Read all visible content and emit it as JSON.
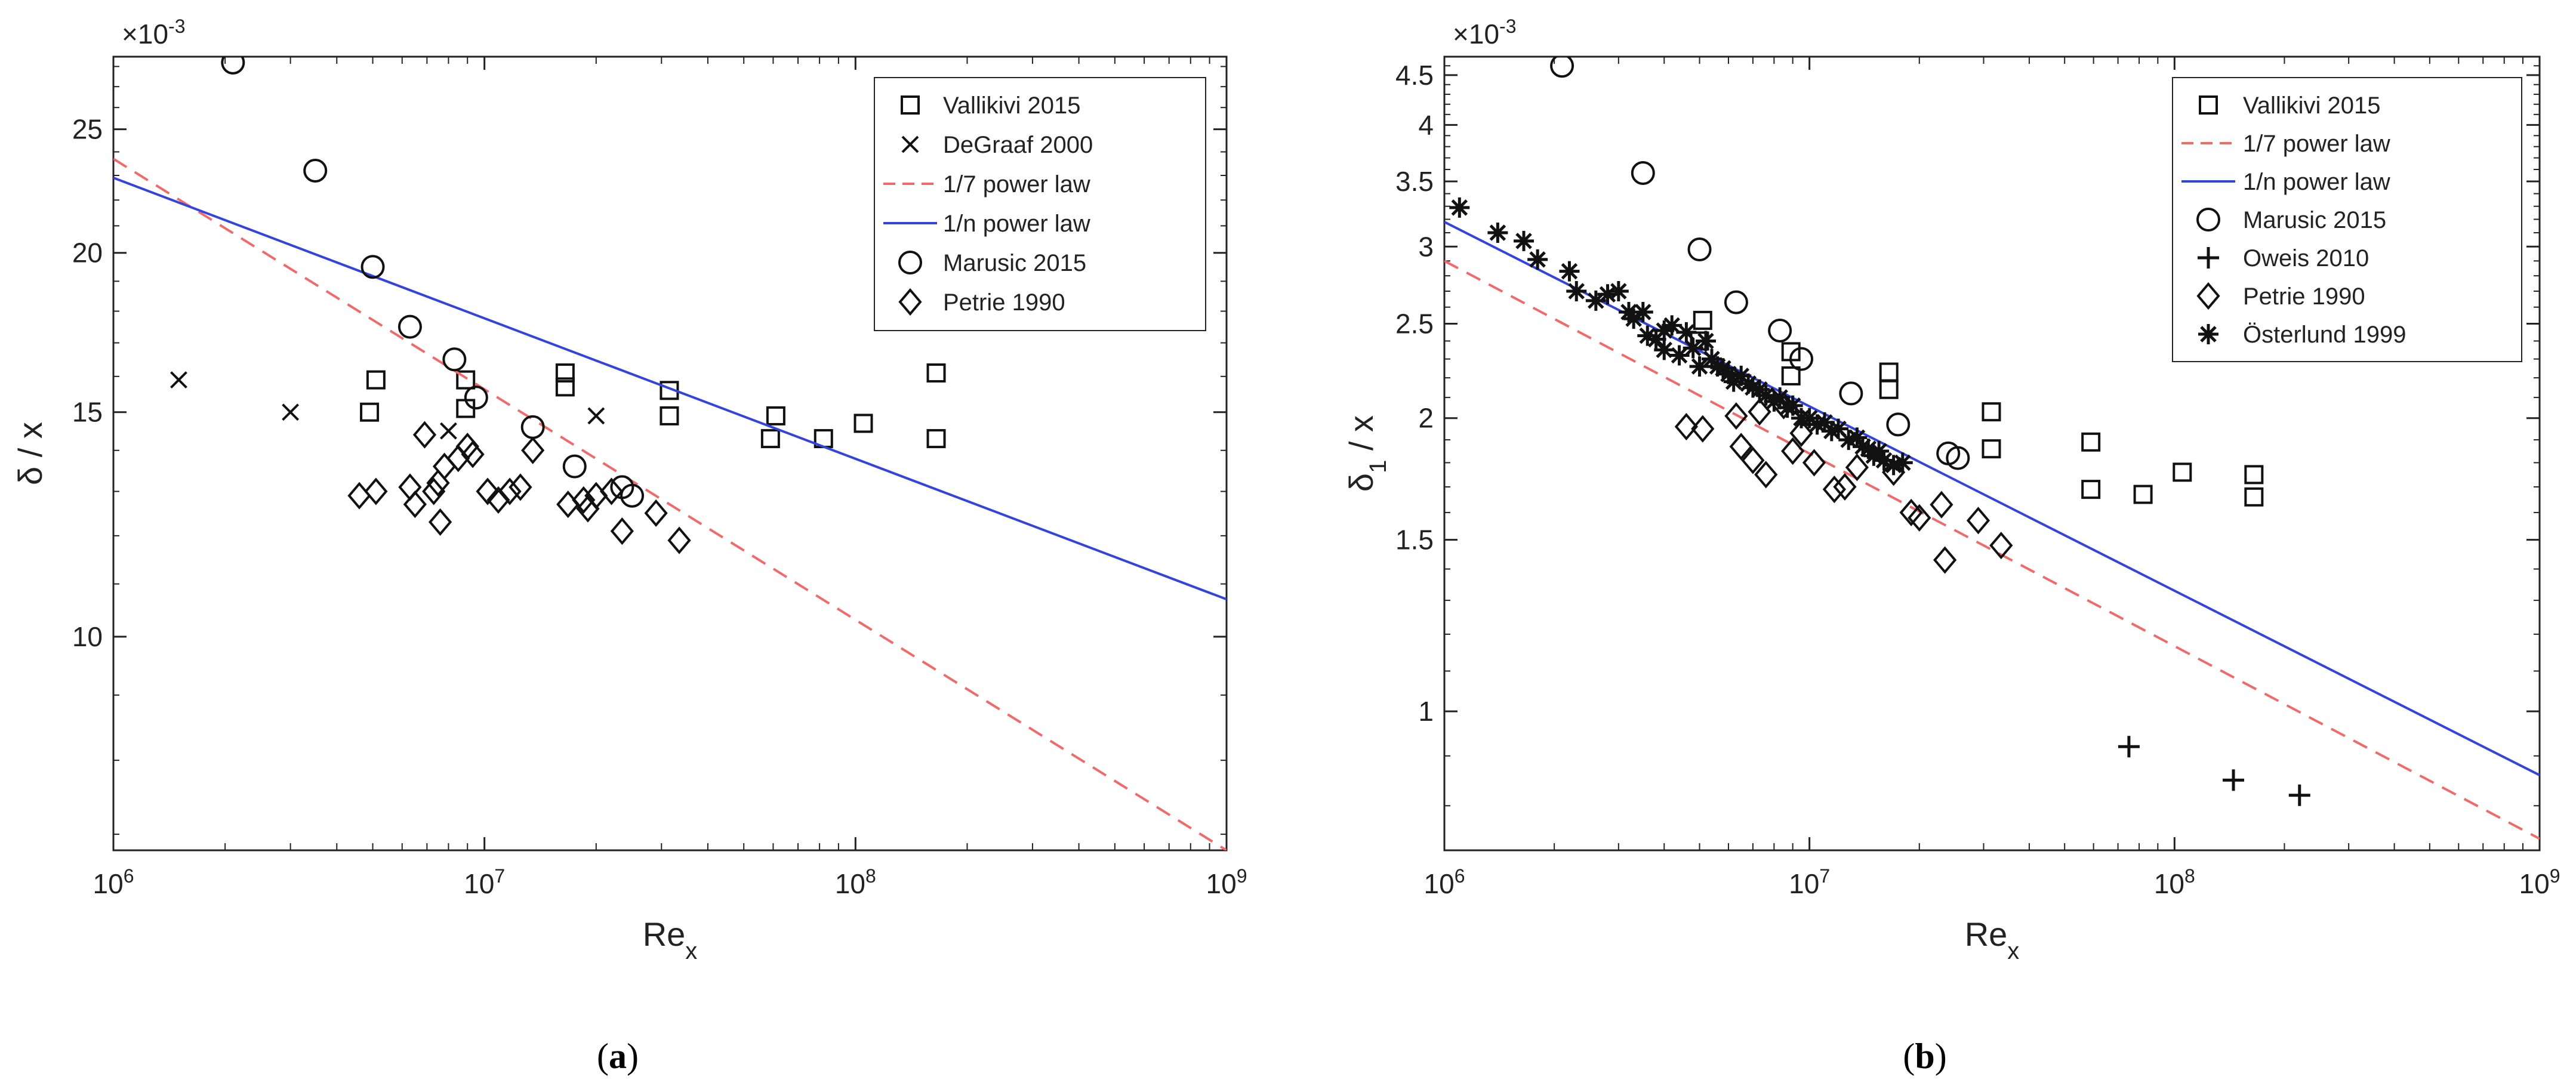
{
  "chart_data": [
    {
      "type": "scatter",
      "title": "",
      "caption": "(a)",
      "xlabel": "Re",
      "xlabel_sub": "x",
      "ylabel": "δ / x",
      "y_multiplier": "×10",
      "y_multiplier_exp": "-3",
      "xscale": "log",
      "yscale": "log",
      "xlim": [
        1000000,
        1000000000
      ],
      "ylim": [
        0.0068,
        0.0285
      ],
      "xticks": [
        1000000,
        10000000,
        100000000,
        1000000000
      ],
      "xtick_labels": [
        {
          "base": "10",
          "exp": "6"
        },
        {
          "base": "10",
          "exp": "7"
        },
        {
          "base": "10",
          "exp": "8"
        },
        {
          "base": "10",
          "exp": "9"
        }
      ],
      "yticks": [
        0.01,
        0.015,
        0.02,
        0.025
      ],
      "ytick_labels": [
        "10",
        "15",
        "20",
        "25"
      ],
      "legend_position": "top-right",
      "series": [
        {
          "name": "Vallikivi 2015",
          "kind": "marker",
          "marker": "square",
          "color": "#111111",
          "points": [
            [
              4900000,
              0.015
            ],
            [
              5100000,
              0.0159
            ],
            [
              8900000,
              0.0159
            ],
            [
              8900000,
              0.0151
            ],
            [
              16500000,
              0.0157
            ],
            [
              16500000,
              0.0161
            ],
            [
              31500000,
              0.0156
            ],
            [
              31500000,
              0.0149
            ],
            [
              59000000,
              0.0143
            ],
            [
              61000000,
              0.0149
            ],
            [
              82000000,
              0.0143
            ],
            [
              105000000,
              0.0147
            ],
            [
              165000000,
              0.0161
            ],
            [
              165000000,
              0.0143
            ]
          ]
        },
        {
          "name": "DeGraaf 2000",
          "kind": "marker",
          "marker": "x",
          "color": "#111111",
          "points": [
            [
              1500000,
              0.0159
            ],
            [
              3000000,
              0.015
            ],
            [
              8000000,
              0.0145
            ],
            [
              20000000,
              0.0149
            ]
          ]
        },
        {
          "name": "1/7 power law",
          "kind": "line",
          "dash": "dashed",
          "color": "#f06a6a",
          "points": [
            [
              1000000,
              0.0237
            ],
            [
              1000000000,
              0.0068
            ]
          ]
        },
        {
          "name": "1/n power law",
          "kind": "line",
          "dash": "solid",
          "color": "#3344dd",
          "points": [
            [
              1000000,
              0.0229
            ],
            [
              1000000000,
              0.0107
            ]
          ]
        },
        {
          "name": "Marusic 2015",
          "kind": "marker",
          "marker": "circle",
          "color": "#111111",
          "points": [
            [
              2100000,
              0.0282
            ],
            [
              3500000,
              0.0232
            ],
            [
              5000000,
              0.0195
            ],
            [
              6300000,
              0.0175
            ],
            [
              8300000,
              0.0165
            ],
            [
              9500000,
              0.0154
            ],
            [
              13500000,
              0.0146
            ],
            [
              17500000,
              0.0136
            ],
            [
              23500000,
              0.0131
            ],
            [
              25000000,
              0.0129
            ]
          ]
        },
        {
          "name": "Petrie 1990",
          "kind": "marker",
          "marker": "diamond",
          "color": "#111111",
          "points": [
            [
              4600000,
              0.0129
            ],
            [
              5100000,
              0.013
            ],
            [
              6300000,
              0.0131
            ],
            [
              6500000,
              0.0127
            ],
            [
              6900000,
              0.0144
            ],
            [
              7300000,
              0.013
            ],
            [
              7500000,
              0.0132
            ],
            [
              7600000,
              0.0123
            ],
            [
              7800000,
              0.0136
            ],
            [
              8500000,
              0.0138
            ],
            [
              9000000,
              0.0141
            ],
            [
              9300000,
              0.0139
            ],
            [
              10200000,
              0.013
            ],
            [
              10900000,
              0.0128
            ],
            [
              11700000,
              0.013
            ],
            [
              12500000,
              0.0131
            ],
            [
              13500000,
              0.014
            ],
            [
              16800000,
              0.0127
            ],
            [
              18500000,
              0.0128
            ],
            [
              19000000,
              0.0126
            ],
            [
              20000000,
              0.0129
            ],
            [
              22000000,
              0.013
            ],
            [
              23500000,
              0.0121
            ],
            [
              29000000,
              0.0125
            ],
            [
              33500000,
              0.0119
            ]
          ]
        }
      ]
    },
    {
      "type": "scatter",
      "title": "",
      "caption": "(b)",
      "xlabel": "Re",
      "xlabel_sub": "x",
      "ylabel": "δ",
      "ylabel_sub": "1",
      "ylabel_tail": " / x",
      "y_multiplier": "×10",
      "y_multiplier_exp": "-3",
      "xscale": "log",
      "yscale": "log",
      "xlim": [
        1000000,
        1000000000
      ],
      "ylim": [
        0.00072,
        0.0047
      ],
      "xticks": [
        1000000,
        10000000,
        100000000,
        1000000000
      ],
      "xtick_labels": [
        {
          "base": "10",
          "exp": "6"
        },
        {
          "base": "10",
          "exp": "7"
        },
        {
          "base": "10",
          "exp": "8"
        },
        {
          "base": "10",
          "exp": "9"
        }
      ],
      "yticks": [
        0.001,
        0.0015,
        0.002,
        0.0025,
        0.003,
        0.0035,
        0.004,
        0.0045
      ],
      "ytick_labels": [
        "1",
        "1.5",
        "2",
        "2.5",
        "3",
        "3.5",
        "4",
        "4.5"
      ],
      "legend_position": "top-right",
      "series": [
        {
          "name": "Vallikivi 2015",
          "kind": "marker",
          "marker": "square",
          "color": "#111111",
          "points": [
            [
              5100000,
              0.00252
            ],
            [
              5000000,
              0.0024
            ],
            [
              8900000,
              0.00234
            ],
            [
              8900000,
              0.00221
            ],
            [
              16500000,
              0.00223
            ],
            [
              16500000,
              0.00214
            ],
            [
              31500000,
              0.00203
            ],
            [
              31500000,
              0.00186
            ],
            [
              59000000,
              0.00189
            ],
            [
              59000000,
              0.00169
            ],
            [
              82000000,
              0.00167
            ],
            [
              105000000,
              0.00176
            ],
            [
              165000000,
              0.00175
            ],
            [
              165000000,
              0.00166
            ]
          ]
        },
        {
          "name": "1/7 power law",
          "kind": "line",
          "dash": "dashed",
          "color": "#f06a6a",
          "points": [
            [
              1000000,
              0.0029
            ],
            [
              1000000000,
              0.00074
            ]
          ]
        },
        {
          "name": "1/n power law",
          "kind": "line",
          "dash": "solid",
          "color": "#3344dd",
          "points": [
            [
              1000000,
              0.00318
            ],
            [
              1000000000,
              0.00086
            ]
          ]
        },
        {
          "name": "Marusic 2015",
          "kind": "marker",
          "marker": "circle",
          "color": "#111111",
          "points": [
            [
              2100000,
              0.0046
            ],
            [
              3500000,
              0.00357
            ],
            [
              5000000,
              0.00298
            ],
            [
              6300000,
              0.00263
            ],
            [
              8300000,
              0.00246
            ],
            [
              9500000,
              0.0023
            ],
            [
              13000000,
              0.00212
            ],
            [
              17500000,
              0.00197
            ],
            [
              24000000,
              0.00184
            ],
            [
              25500000,
              0.00182
            ]
          ]
        },
        {
          "name": "Oweis 2010",
          "kind": "marker",
          "marker": "plus",
          "color": "#111111",
          "points": [
            [
              75000000,
              0.00092
            ],
            [
              145000000,
              0.00085
            ],
            [
              220000000,
              0.00082
            ]
          ]
        },
        {
          "name": "Petrie 1990",
          "kind": "marker",
          "marker": "diamond",
          "color": "#111111",
          "points": [
            [
              4600000,
              0.00196
            ],
            [
              5100000,
              0.00195
            ],
            [
              6300000,
              0.00201
            ],
            [
              6500000,
              0.00187
            ],
            [
              7000000,
              0.00181
            ],
            [
              7300000,
              0.00203
            ],
            [
              7600000,
              0.00175
            ],
            [
              8500000,
              0.00206
            ],
            [
              9000000,
              0.00185
            ],
            [
              9500000,
              0.00193
            ],
            [
              10300000,
              0.0018
            ],
            [
              11700000,
              0.00169
            ],
            [
              12500000,
              0.0017
            ],
            [
              13500000,
              0.00178
            ],
            [
              17000000,
              0.00176
            ],
            [
              19000000,
              0.0016
            ],
            [
              20000000,
              0.00158
            ],
            [
              23000000,
              0.00163
            ],
            [
              23500000,
              0.00143
            ],
            [
              29000000,
              0.00157
            ],
            [
              33500000,
              0.00148
            ]
          ]
        },
        {
          "name": "Österlund 1999",
          "kind": "marker",
          "marker": "asterisk",
          "color": "#111111",
          "points": [
            [
              1100000,
              0.00329
            ],
            [
              1400000,
              0.0031
            ],
            [
              1650000,
              0.00304
            ],
            [
              1800000,
              0.00291
            ],
            [
              2200000,
              0.00283
            ],
            [
              2300000,
              0.0027
            ],
            [
              2600000,
              0.00264
            ],
            [
              2800000,
              0.00268
            ],
            [
              3000000,
              0.0027
            ],
            [
              3200000,
              0.00257
            ],
            [
              3300000,
              0.00253
            ],
            [
              3500000,
              0.00257
            ],
            [
              3600000,
              0.00243
            ],
            [
              3800000,
              0.00241
            ],
            [
              4000000,
              0.00235
            ],
            [
              4000000,
              0.00246
            ],
            [
              4200000,
              0.00249
            ],
            [
              4400000,
              0.00232
            ],
            [
              4600000,
              0.00245
            ],
            [
              4800000,
              0.00236
            ],
            [
              5000000,
              0.00226
            ],
            [
              5200000,
              0.0024
            ],
            [
              5400000,
              0.0023
            ],
            [
              5600000,
              0.00226
            ],
            [
              5800000,
              0.00225
            ],
            [
              6000000,
              0.00222
            ],
            [
              6200000,
              0.00218
            ],
            [
              6500000,
              0.00221
            ],
            [
              6800000,
              0.00217
            ],
            [
              7000000,
              0.00215
            ],
            [
              7300000,
              0.00214
            ],
            [
              7600000,
              0.00211
            ],
            [
              8000000,
              0.00208
            ],
            [
              8300000,
              0.0021
            ],
            [
              8700000,
              0.00205
            ],
            [
              9000000,
              0.00206
            ],
            [
              9500000,
              0.002
            ],
            [
              10000000,
              0.002
            ],
            [
              10500000,
              0.00197
            ],
            [
              11000000,
              0.00198
            ],
            [
              11500000,
              0.00194
            ],
            [
              12000000,
              0.00195
            ],
            [
              12800000,
              0.0019
            ],
            [
              13500000,
              0.00191
            ],
            [
              14000000,
              0.00187
            ],
            [
              14500000,
              0.00186
            ],
            [
              15000000,
              0.00183
            ],
            [
              15500000,
              0.00185
            ],
            [
              16000000,
              0.00181
            ],
            [
              17000000,
              0.00179
            ],
            [
              18000000,
              0.0018
            ]
          ]
        }
      ]
    }
  ]
}
